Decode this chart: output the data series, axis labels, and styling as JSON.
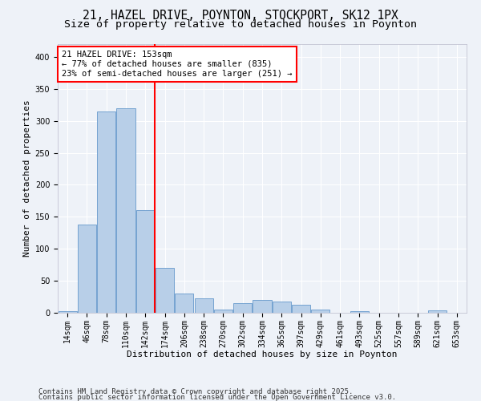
{
  "title": "21, HAZEL DRIVE, POYNTON, STOCKPORT, SK12 1PX",
  "subtitle": "Size of property relative to detached houses in Poynton",
  "xlabel": "Distribution of detached houses by size in Poynton",
  "ylabel": "Number of detached properties",
  "bins": [
    "14sqm",
    "46sqm",
    "78sqm",
    "110sqm",
    "142sqm",
    "174sqm",
    "206sqm",
    "238sqm",
    "270sqm",
    "302sqm",
    "334sqm",
    "365sqm",
    "397sqm",
    "429sqm",
    "461sqm",
    "493sqm",
    "525sqm",
    "557sqm",
    "589sqm",
    "621sqm",
    "653sqm"
  ],
  "bar_values": [
    3,
    138,
    315,
    320,
    160,
    70,
    30,
    22,
    5,
    15,
    20,
    18,
    12,
    5,
    0,
    3,
    0,
    0,
    0,
    4,
    0
  ],
  "bar_color": "#b8cfe8",
  "bar_edgecolor": "#6699cc",
  "vline_x": 4.5,
  "vline_color": "red",
  "annotation_text": "21 HAZEL DRIVE: 153sqm\n← 77% of detached houses are smaller (835)\n23% of semi-detached houses are larger (251) →",
  "annotation_box_color": "white",
  "annotation_box_edgecolor": "red",
  "ylim": [
    0,
    420
  ],
  "yticks": [
    0,
    50,
    100,
    150,
    200,
    250,
    300,
    350,
    400
  ],
  "footer1": "Contains HM Land Registry data © Crown copyright and database right 2025.",
  "footer2": "Contains public sector information licensed under the Open Government Licence v3.0.",
  "bg_color": "#eef2f8",
  "plot_bg_color": "#eef2f8",
  "grid_color": "white",
  "title_fontsize": 10.5,
  "subtitle_fontsize": 9.5,
  "axis_label_fontsize": 8,
  "tick_fontsize": 7,
  "annotation_fontsize": 7.5,
  "footer_fontsize": 6.5
}
